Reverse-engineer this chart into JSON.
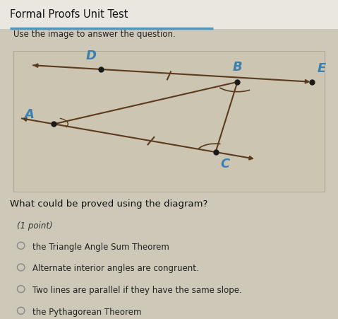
{
  "title": "Formal Proofs Unit Test",
  "subtitle": "Use the image to answer the question.",
  "question": "What could be proved using the diagram?",
  "point_label": "(1 point)",
  "options": [
    "the Triangle Angle Sum Theorem",
    "Alternate interior angles are congruent.",
    "Two lines are parallel if they have the same slope.",
    "the Pythagorean Theorem"
  ],
  "bg_color": "#cec8b8",
  "diagram_bg": "#ccc5b2",
  "title_bar_color": "#4a9ac4",
  "label_color": "#3a80b0",
  "line_color": "#5c3a1e",
  "dot_color": "#1a1a1a",
  "font_color": "#222222",
  "option_font_size": 8.5,
  "question_font_size": 9.5
}
